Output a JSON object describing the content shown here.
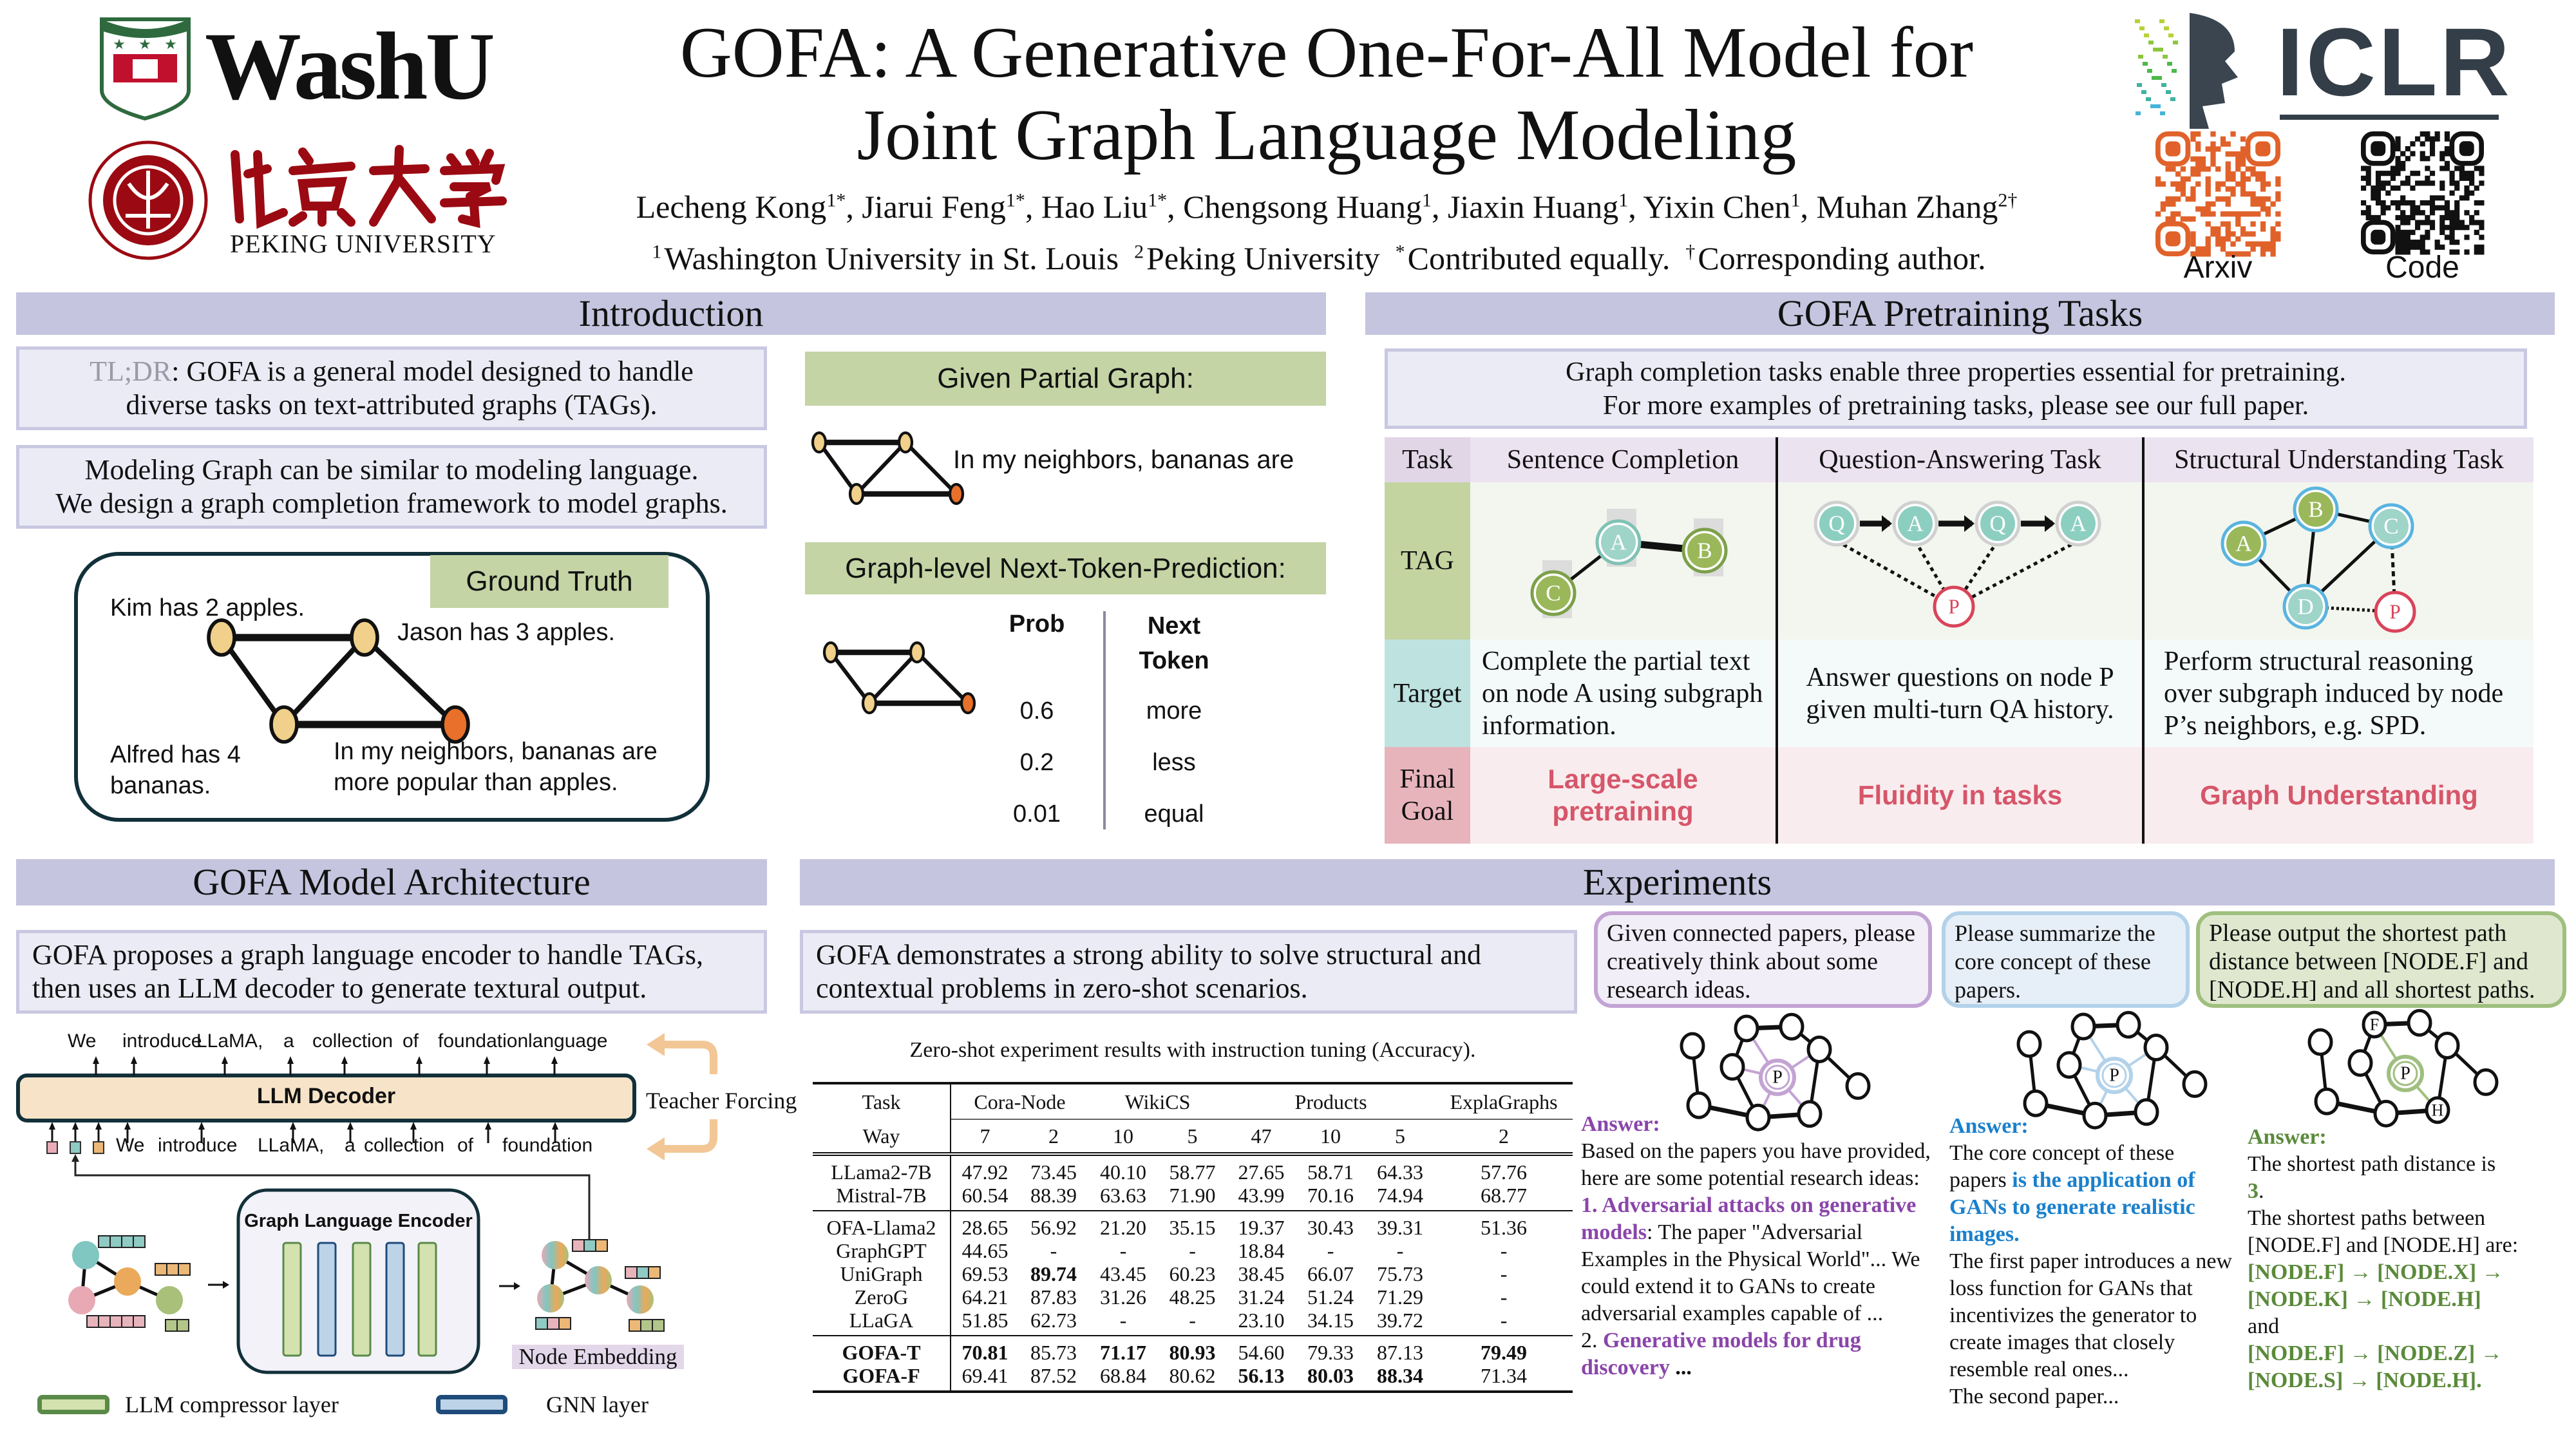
{
  "logos": {
    "washu": "WashU",
    "peking_chinese": "北京大学",
    "peking_english": "PEKING UNIVERSITY",
    "iclr": "ICLR"
  },
  "header": {
    "title_line1": "GOFA: A Generative One-For-All Model for",
    "title_line2": "Joint Graph Language Modeling",
    "author_separator": ", ",
    "authors": [
      {
        "name": "Lecheng Kong",
        "sup": "1*"
      },
      {
        "name": "Jiarui Feng",
        "sup": "1*"
      },
      {
        "name": "Hao Liu",
        "sup": "1*"
      },
      {
        "name": "Chengsong Huang",
        "sup": "1"
      },
      {
        "name": "Jiaxin Huang",
        "sup": "1"
      },
      {
        "name": "Yixin Chen",
        "sup": "1"
      },
      {
        "name": "Muhan Zhang",
        "sup": "2†"
      }
    ],
    "affiliations": [
      {
        "sup": "1",
        "text": "Washington University in St. Louis"
      },
      {
        "sup": "2",
        "text": "Peking University"
      },
      {
        "sup": "*",
        "text": "Contributed equally."
      },
      {
        "sup": "†",
        "text": "Corresponding author."
      }
    ],
    "qr_arxiv_label": "Arxiv",
    "qr_code_label": "Code"
  },
  "colors": {
    "section_header": "#c5c5e0",
    "box_bg": "#ebebf5",
    "green_header": "#c4d4a5",
    "goal_red": "#d6566a",
    "arxiv_qr": "#e0622a",
    "purple": "#8a45aa",
    "blue": "#1a80cc",
    "green": "#5a8a3a"
  },
  "introduction": {
    "title": "Introduction",
    "tldr_label": "TL;DR",
    "tldr_text": ": GOFA is a general model designed to handle diverse tasks on text-attributed graphs (TAGs).",
    "modeling_line1": "Modeling Graph can be similar to modeling language.",
    "modeling_line2": "We design a graph completion framework to model graphs.",
    "ground_truth_label": "Ground Truth",
    "gt_nodes": {
      "kim": "Kim has 2 apples.",
      "jason": "Jason has 3 apples.",
      "alfred_1": "Alfred has 4",
      "alfred_2": "bananas.",
      "target_1": "In my neighbors, bananas are",
      "target_2": "more popular than apples."
    },
    "given_partial_graph": "Given Partial Graph:",
    "partial_text": "In my neighbors, bananas are",
    "ntp_title": "Graph-level Next-Token-Prediction:",
    "ntp_prob_header": "Prob",
    "ntp_token_header_1": "Next",
    "ntp_token_header_2": "Token",
    "ntp_rows": [
      {
        "prob": "0.6",
        "token": "more"
      },
      {
        "prob": "0.2",
        "token": "less"
      },
      {
        "prob": "0.01",
        "token": "equal"
      }
    ]
  },
  "pretraining": {
    "title": "GOFA Pretraining Tasks",
    "intro_line1": "Graph completion tasks enable three properties essential for pretraining.",
    "intro_line2": "For more examples of pretraining tasks, please see our full paper.",
    "headers": [
      "Task",
      "Sentence Completion",
      "Question-Answering Task",
      "Structural Understanding Task"
    ],
    "row_labels": [
      "TAG",
      "Target",
      "Final Goal"
    ],
    "targets": [
      "Complete the partial text on node A using subgraph information.",
      "Answer questions on node P given multi-turn QA history.",
      "Perform structural reasoning over subgraph induced by node P’s neighbors, e.g. SPD."
    ],
    "goals": [
      "Large-scale pretraining",
      "Fluidity in tasks",
      "Graph Understanding"
    ],
    "diagram_labels": {
      "sentence": [
        "A",
        "B",
        "C"
      ],
      "qa": [
        "Q",
        "A",
        "Q",
        "A",
        "P"
      ],
      "structural": [
        "A",
        "B",
        "C",
        "D",
        "P"
      ]
    }
  },
  "architecture": {
    "title": "GOFA Model Architecture",
    "description": "GOFA proposes a graph language encoder to handle TAGs, then uses an LLM decoder to generate textural output.",
    "output_tokens": [
      "We",
      "introduce",
      "LLaMA,",
      "a",
      "collection",
      "of",
      "foundation",
      "language"
    ],
    "input_tokens": [
      "We",
      "introduce",
      "LLaMA,",
      "a",
      "collection",
      "of",
      "foundation"
    ],
    "decoder_label": "LLM Decoder",
    "teacher_forcing": "Teacher Forcing",
    "encoder_label": "Graph Language Encoder",
    "node_embedding": "Node Embedding",
    "legend_llm": "LLM compressor layer",
    "legend_gnn": "GNN layer"
  },
  "experiments": {
    "title": "Experiments",
    "description": "GOFA demonstrates a strong ability to solve structural and contextual problems in zero-shot scenarios.",
    "results_table": {
      "caption": "Zero-shot experiment results with instruction tuning (Accuracy).",
      "task_label": "Task",
      "way_label": "Way",
      "datasets": [
        {
          "name": "Cora-Node",
          "ways": [
            "7",
            "2"
          ]
        },
        {
          "name": "WikiCS",
          "ways": [
            "10",
            "5"
          ]
        },
        {
          "name": "Products",
          "ways": [
            "47",
            "10",
            "5"
          ]
        },
        {
          "name": "ExplaGraphs",
          "ways": [
            "2"
          ]
        }
      ],
      "groups": [
        [
          {
            "model": "LLama2-7B",
            "values": [
              "47.92",
              "73.45",
              "40.10",
              "58.77",
              "27.65",
              "58.71",
              "64.33",
              "57.76"
            ],
            "bold": []
          },
          {
            "model": "Mistral-7B",
            "values": [
              "60.54",
              "88.39",
              "63.63",
              "71.90",
              "43.99",
              "70.16",
              "74.94",
              "68.77"
            ],
            "bold": []
          }
        ],
        [
          {
            "model": "OFA-Llama2",
            "values": [
              "28.65",
              "56.92",
              "21.20",
              "35.15",
              "19.37",
              "30.43",
              "39.31",
              "51.36"
            ],
            "bold": []
          },
          {
            "model": "GraphGPT",
            "values": [
              "44.65",
              "-",
              "-",
              "-",
              "18.84",
              "-",
              "-",
              "-"
            ],
            "bold": []
          },
          {
            "model": "UniGraph",
            "values": [
              "69.53",
              "89.74",
              "43.45",
              "60.23",
              "38.45",
              "66.07",
              "75.73",
              "-"
            ],
            "bold": [
              1
            ]
          },
          {
            "model": "ZeroG",
            "values": [
              "64.21",
              "87.83",
              "31.26",
              "48.25",
              "31.24",
              "51.24",
              "71.29",
              "-"
            ],
            "bold": []
          },
          {
            "model": "LLaGA",
            "values": [
              "51.85",
              "62.73",
              "-",
              "-",
              "23.10",
              "34.15",
              "39.72",
              "-"
            ],
            "bold": []
          }
        ],
        [
          {
            "model": "GOFA-T",
            "model_bold": true,
            "values": [
              "70.81",
              "85.73",
              "71.17",
              "80.93",
              "54.60",
              "79.33",
              "87.13",
              "79.49"
            ],
            "bold": [
              0,
              2,
              3,
              7
            ]
          },
          {
            "model": "GOFA-F",
            "model_bold": true,
            "values": [
              "69.41",
              "87.52",
              "68.84",
              "80.62",
              "56.13",
              "80.03",
              "88.34",
              "71.34"
            ],
            "bold": [
              4,
              5,
              6
            ]
          }
        ]
      ]
    },
    "examples": [
      {
        "prompt": "Given connected papers, please creatively think about some research ideas.",
        "answer_label": "Answer:",
        "node_label": "P",
        "segments": [
          {
            "text": "Based on the papers you have provided, here are some potential research ideas:\n",
            "style": "normal"
          },
          {
            "text": "1. Adversarial attacks on generative models",
            "style": "hl"
          },
          {
            "text": ": The paper \"Adversarial Examples in the Physical World\"... We could extend it to GANs to create adversarial examples capable of ...\n2. ",
            "style": "normal"
          },
          {
            "text": "Generative models for drug discovery",
            "style": "hl"
          },
          {
            "text": " ...",
            "style": "bold"
          }
        ]
      },
      {
        "prompt": "Please summarize the core concept of these papers.",
        "answer_label": "Answer:",
        "node_label": "P",
        "segments": [
          {
            "text": "The core concept of these papers ",
            "style": "normal"
          },
          {
            "text": "is the application of GANs to generate realistic images.",
            "style": "hl"
          },
          {
            "text": "\nThe first paper introduces a new loss function for GANs that incentivizes the generator to create images that closely resemble real ones...\nThe second paper...",
            "style": "normal"
          }
        ]
      },
      {
        "prompt": "Please output the shortest path distance between [NODE.F] and [NODE.H] and all shortest paths.",
        "answer_label": "Answer:",
        "node_label": "P",
        "endpoint_labels": [
          "F",
          "H"
        ],
        "segments": [
          {
            "text": "The shortest path distance is\n",
            "style": "normal"
          },
          {
            "text": "3",
            "style": "hl"
          },
          {
            "text": ".\nThe shortest paths between [NODE.F] and [NODE.H] are:\n",
            "style": "normal"
          },
          {
            "text": "[NODE.F] → [NODE.X] → [NODE.K] → [NODE.H]",
            "style": "hl"
          },
          {
            "text": "\nand\n",
            "style": "normal"
          },
          {
            "text": "[NODE.F] → [NODE.Z] → [NODE.S] → [NODE.H].",
            "style": "hl"
          }
        ]
      }
    ]
  }
}
